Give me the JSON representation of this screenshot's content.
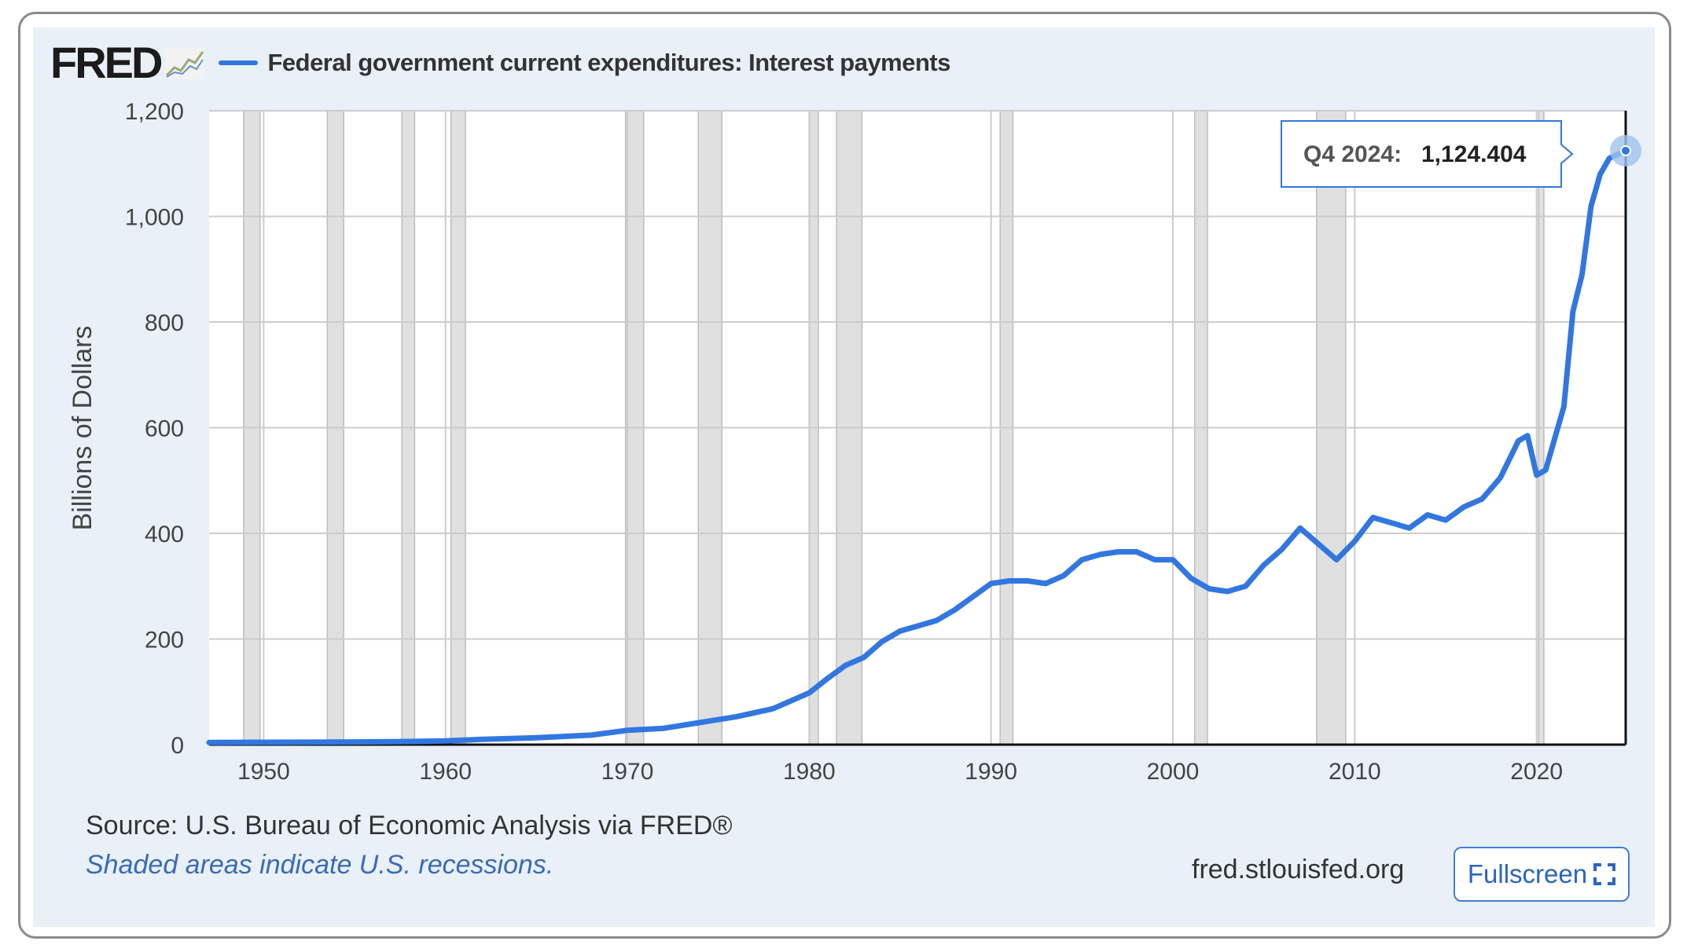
{
  "header": {
    "logo_text": "FRED",
    "series_title": "Federal government current expenditures: Interest payments"
  },
  "footer": {
    "source": "Source: U.S. Bureau of Economic Analysis via FRED®",
    "recession_note": "Shaded areas indicate U.S. recessions.",
    "site": "fred.stlouisfed.org",
    "fullscreen_label": "Fullscreen"
  },
  "tooltip": {
    "period": "Q4 2024:",
    "value": "1,124.404"
  },
  "colors": {
    "series": "#3277e0",
    "recession": "#e0e0e0",
    "panel": "#e9f0f8"
  },
  "chart_data": {
    "type": "line",
    "title": "Federal government current expenditures: Interest payments",
    "ylabel": "Billions of Dollars",
    "xlabel": "",
    "xlim": [
      1947,
      2024.9
    ],
    "ylim": [
      0,
      1200
    ],
    "x_ticks": [
      1950,
      1960,
      1970,
      1980,
      1990,
      2000,
      2010,
      2020
    ],
    "y_ticks": [
      0,
      200,
      400,
      600,
      800,
      1000,
      1200
    ],
    "y_tick_labels": [
      "0",
      "200",
      "400",
      "600",
      "800",
      "1,000",
      "1,200"
    ],
    "grid": true,
    "legend": "top-left",
    "recessions": [
      [
        1948.9,
        1949.8
      ],
      [
        1953.5,
        1954.4
      ],
      [
        1957.6,
        1958.3
      ],
      [
        1960.3,
        1961.1
      ],
      [
        1969.9,
        1970.9
      ],
      [
        1973.9,
        1975.2
      ],
      [
        1980.0,
        1980.5
      ],
      [
        1981.5,
        1982.9
      ],
      [
        1990.5,
        1991.2
      ],
      [
        2001.2,
        2001.9
      ],
      [
        2007.9,
        2009.5
      ],
      [
        2020.1,
        2020.4
      ]
    ],
    "series": [
      {
        "name": "Federal government current expenditures: Interest payments",
        "x": [
          1947,
          1950,
          1955,
          1958,
          1960,
          1962,
          1965,
          1968,
          1970,
          1972,
          1974,
          1976,
          1978,
          1980,
          1981,
          1982,
          1983,
          1984,
          1985,
          1986,
          1987,
          1988,
          1989,
          1990,
          1991,
          1992,
          1993,
          1994,
          1995,
          1996,
          1997,
          1998,
          1999,
          2000,
          2001,
          2002,
          2003,
          2004,
          2005,
          2006,
          2007,
          2008,
          2009,
          2010,
          2011,
          2012,
          2013,
          2014,
          2015,
          2016,
          2017,
          2018,
          2019,
          2019.5,
          2020,
          2020.5,
          2021,
          2021.5,
          2022,
          2022.5,
          2023,
          2023.5,
          2024,
          2024.9
        ],
        "y": [
          4,
          4.5,
          5,
          6,
          7,
          10,
          13,
          18,
          27,
          31,
          42,
          53,
          68,
          98,
          125,
          150,
          165,
          195,
          215,
          225,
          235,
          255,
          280,
          305,
          310,
          310,
          305,
          320,
          350,
          360,
          365,
          365,
          350,
          350,
          315,
          295,
          290,
          300,
          340,
          370,
          410,
          380,
          350,
          385,
          430,
          420,
          410,
          435,
          425,
          450,
          465,
          505,
          575,
          585,
          510,
          520,
          580,
          640,
          820,
          890,
          1020,
          1080,
          1110,
          1124.404
        ]
      }
    ]
  }
}
